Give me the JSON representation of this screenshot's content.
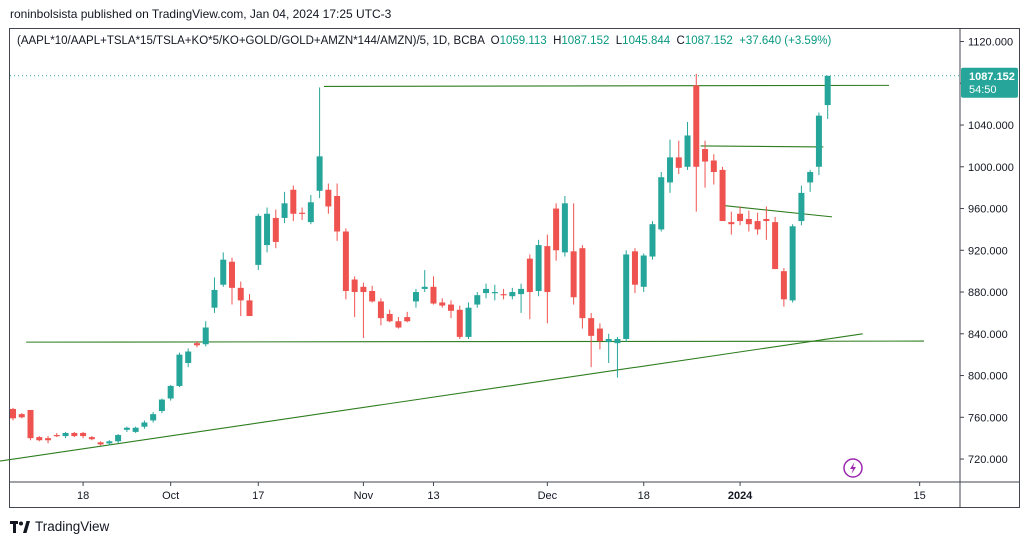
{
  "header": {
    "published_line": "roninbolsista published on TradingView.com, Jan 04, 2024 17:25 UTC-3"
  },
  "legend": {
    "symbol": "(AAPL*10/AAPL+TSLA*15/TSLA+KO*5/KO+GOLD/GOLD+AMZN*144/AMZN)/5, 1D, BCBA",
    "open_label": "O",
    "open": "1059.113",
    "high_label": "H",
    "high": "1087.152",
    "low_label": "L",
    "low": "1045.844",
    "close_label": "C",
    "close": "1087.152",
    "change": "+37.640 (+3.59%)"
  },
  "price_badge": {
    "price": "1087.152",
    "countdown": "54:50"
  },
  "footer": {
    "brand": "TradingView"
  },
  "colors": {
    "up": "#26a69a",
    "down": "#ef5350",
    "drawing": "#2e7d1f",
    "axis_text": "#131722",
    "badge_bg": "#26a69a",
    "frame": "#434651"
  },
  "chart_data": {
    "type": "candlestick",
    "y_axis": {
      "range": [
        698,
        1132
      ],
      "ticks": [
        720,
        760,
        800,
        840,
        880,
        920,
        960,
        1000,
        1040,
        1080,
        1120
      ],
      "tick_labels": [
        "720.000",
        "760.000",
        "800.000",
        "840.000",
        "880.000",
        "920.000",
        "960.000",
        "1000.000",
        "1040.000",
        "1080.000",
        "1120.000"
      ]
    },
    "x_axis": {
      "labels": [
        {
          "date": "2023-09-18",
          "text": "18"
        },
        {
          "date": "2023-10-02",
          "text": "Oct"
        },
        {
          "date": "2023-10-16",
          "text": "17"
        },
        {
          "date": "2023-11-01",
          "text": "Nov"
        },
        {
          "date": "2023-11-13",
          "text": "13"
        },
        {
          "date": "2023-12-01",
          "text": "Dec"
        },
        {
          "date": "2023-12-18",
          "text": "18"
        },
        {
          "date": "2024-01-02",
          "text": "2024"
        },
        {
          "date": "2024-01-15",
          "text": "15"
        }
      ]
    },
    "candles": [
      {
        "date": "2023-09-06",
        "o": 768,
        "h": 769,
        "l": 757,
        "c": 759
      },
      {
        "date": "2023-09-07",
        "o": 763,
        "h": 764,
        "l": 759,
        "c": 760
      },
      {
        "date": "2023-09-08",
        "o": 767,
        "h": 767,
        "l": 738,
        "c": 740
      },
      {
        "date": "2023-09-11",
        "o": 741,
        "h": 742,
        "l": 737,
        "c": 738
      },
      {
        "date": "2023-09-12",
        "o": 740,
        "h": 742,
        "l": 735,
        "c": 738
      },
      {
        "date": "2023-09-13",
        "o": 743,
        "h": 745,
        "l": 741,
        "c": 742
      },
      {
        "date": "2023-09-14",
        "o": 742,
        "h": 746,
        "l": 740,
        "c": 745
      },
      {
        "date": "2023-09-15",
        "o": 745,
        "h": 746,
        "l": 741,
        "c": 742
      },
      {
        "date": "2023-09-18",
        "o": 745,
        "h": 746,
        "l": 740,
        "c": 742
      },
      {
        "date": "2023-09-19",
        "o": 741,
        "h": 742,
        "l": 738,
        "c": 739
      },
      {
        "date": "2023-09-20",
        "o": 736,
        "h": 737,
        "l": 733,
        "c": 734
      },
      {
        "date": "2023-09-21",
        "o": 735,
        "h": 738,
        "l": 733,
        "c": 737
      },
      {
        "date": "2023-09-22",
        "o": 737,
        "h": 744,
        "l": 735,
        "c": 743
      },
      {
        "date": "2023-09-25",
        "o": 748,
        "h": 751,
        "l": 746,
        "c": 750
      },
      {
        "date": "2023-09-26",
        "o": 746,
        "h": 751,
        "l": 745,
        "c": 750
      },
      {
        "date": "2023-09-27",
        "o": 751,
        "h": 757,
        "l": 749,
        "c": 755
      },
      {
        "date": "2023-09-28",
        "o": 757,
        "h": 765,
        "l": 755,
        "c": 763
      },
      {
        "date": "2023-09-29",
        "o": 766,
        "h": 778,
        "l": 764,
        "c": 777
      },
      {
        "date": "2023-10-02",
        "o": 778,
        "h": 791,
        "l": 776,
        "c": 790
      },
      {
        "date": "2023-10-03",
        "o": 790,
        "h": 822,
        "l": 789,
        "c": 820
      },
      {
        "date": "2023-10-04",
        "o": 812,
        "h": 826,
        "l": 808,
        "c": 823
      },
      {
        "date": "2023-10-05",
        "o": 831,
        "h": 833,
        "l": 827,
        "c": 829
      },
      {
        "date": "2023-10-06",
        "o": 830,
        "h": 852,
        "l": 828,
        "c": 846
      },
      {
        "date": "2023-10-09",
        "o": 865,
        "h": 894,
        "l": 860,
        "c": 882
      },
      {
        "date": "2023-10-10",
        "o": 887,
        "h": 918,
        "l": 885,
        "c": 911
      },
      {
        "date": "2023-10-11",
        "o": 909,
        "h": 913,
        "l": 868,
        "c": 884
      },
      {
        "date": "2023-10-12",
        "o": 884,
        "h": 890,
        "l": 857,
        "c": 872
      },
      {
        "date": "2023-10-13",
        "o": 872,
        "h": 878,
        "l": 857,
        "c": 857
      },
      {
        "date": "2023-10-16",
        "o": 906,
        "h": 955,
        "l": 901,
        "c": 953
      },
      {
        "date": "2023-10-17",
        "o": 925,
        "h": 961,
        "l": 918,
        "c": 955
      },
      {
        "date": "2023-10-18",
        "o": 951,
        "h": 959,
        "l": 922,
        "c": 928
      },
      {
        "date": "2023-10-19",
        "o": 951,
        "h": 976,
        "l": 946,
        "c": 965
      },
      {
        "date": "2023-10-20",
        "o": 978,
        "h": 982,
        "l": 948,
        "c": 955
      },
      {
        "date": "2023-10-23",
        "o": 956,
        "h": 961,
        "l": 949,
        "c": 955
      },
      {
        "date": "2023-10-24",
        "o": 947,
        "h": 973,
        "l": 945,
        "c": 966
      },
      {
        "date": "2023-10-25",
        "o": 977,
        "h": 1076,
        "l": 970,
        "c": 1010
      },
      {
        "date": "2023-10-26",
        "o": 978,
        "h": 984,
        "l": 955,
        "c": 962
      },
      {
        "date": "2023-10-27",
        "o": 972,
        "h": 984,
        "l": 929,
        "c": 938
      },
      {
        "date": "2023-10-30",
        "o": 938,
        "h": 941,
        "l": 873,
        "c": 881
      },
      {
        "date": "2023-10-31",
        "o": 892,
        "h": 895,
        "l": 856,
        "c": 880
      },
      {
        "date": "2023-11-01",
        "o": 885,
        "h": 889,
        "l": 836,
        "c": 880
      },
      {
        "date": "2023-11-02",
        "o": 881,
        "h": 886,
        "l": 870,
        "c": 871
      },
      {
        "date": "2023-11-03",
        "o": 871,
        "h": 874,
        "l": 848,
        "c": 855
      },
      {
        "date": "2023-11-06",
        "o": 859,
        "h": 863,
        "l": 851,
        "c": 852
      },
      {
        "date": "2023-11-07",
        "o": 852,
        "h": 856,
        "l": 845,
        "c": 846
      },
      {
        "date": "2023-11-08",
        "o": 856,
        "h": 861,
        "l": 851,
        "c": 852
      },
      {
        "date": "2023-11-09",
        "o": 871,
        "h": 883,
        "l": 865,
        "c": 880
      },
      {
        "date": "2023-11-10",
        "o": 883,
        "h": 901,
        "l": 880,
        "c": 885
      },
      {
        "date": "2023-11-13",
        "o": 885,
        "h": 895,
        "l": 868,
        "c": 869
      },
      {
        "date": "2023-11-14",
        "o": 870,
        "h": 874,
        "l": 865,
        "c": 867
      },
      {
        "date": "2023-11-15",
        "o": 868,
        "h": 872,
        "l": 855,
        "c": 862
      },
      {
        "date": "2023-11-16",
        "o": 863,
        "h": 867,
        "l": 835,
        "c": 837
      },
      {
        "date": "2023-11-17",
        "o": 837,
        "h": 870,
        "l": 835,
        "c": 865
      },
      {
        "date": "2023-11-20",
        "o": 868,
        "h": 880,
        "l": 865,
        "c": 877
      },
      {
        "date": "2023-11-21",
        "o": 879,
        "h": 888,
        "l": 874,
        "c": 883
      },
      {
        "date": "2023-11-22",
        "o": 880,
        "h": 887,
        "l": 872,
        "c": 880
      },
      {
        "date": "2023-11-24",
        "o": 878,
        "h": 883,
        "l": 873,
        "c": 877
      },
      {
        "date": "2023-11-27",
        "o": 876,
        "h": 884,
        "l": 873,
        "c": 880
      },
      {
        "date": "2023-11-28",
        "o": 878,
        "h": 888,
        "l": 860,
        "c": 883
      },
      {
        "date": "2023-11-29",
        "o": 912,
        "h": 916,
        "l": 854,
        "c": 880
      },
      {
        "date": "2023-11-30",
        "o": 881,
        "h": 930,
        "l": 876,
        "c": 925
      },
      {
        "date": "2023-12-01",
        "o": 924,
        "h": 935,
        "l": 850,
        "c": 880
      },
      {
        "date": "2023-12-04",
        "o": 960,
        "h": 965,
        "l": 910,
        "c": 920
      },
      {
        "date": "2023-12-05",
        "o": 918,
        "h": 972,
        "l": 914,
        "c": 965
      },
      {
        "date": "2023-12-06",
        "o": 919,
        "h": 965,
        "l": 868,
        "c": 875
      },
      {
        "date": "2023-12-07",
        "o": 922,
        "h": 925,
        "l": 845,
        "c": 855
      },
      {
        "date": "2023-12-08",
        "o": 855,
        "h": 860,
        "l": 808,
        "c": 838
      },
      {
        "date": "2023-12-11",
        "o": 845,
        "h": 850,
        "l": 825,
        "c": 833
      },
      {
        "date": "2023-12-12",
        "o": 832,
        "h": 840,
        "l": 812,
        "c": 835
      },
      {
        "date": "2023-12-13",
        "o": 831,
        "h": 837,
        "l": 798,
        "c": 835
      },
      {
        "date": "2023-12-14",
        "o": 835,
        "h": 920,
        "l": 832,
        "c": 916
      },
      {
        "date": "2023-12-15",
        "o": 919,
        "h": 922,
        "l": 879,
        "c": 887
      },
      {
        "date": "2023-12-18",
        "o": 885,
        "h": 917,
        "l": 880,
        "c": 915
      },
      {
        "date": "2023-12-19",
        "o": 914,
        "h": 948,
        "l": 911,
        "c": 945
      },
      {
        "date": "2023-12-20",
        "o": 940,
        "h": 995,
        "l": 938,
        "c": 990
      },
      {
        "date": "2023-12-21",
        "o": 985,
        "h": 1026,
        "l": 975,
        "c": 1009
      },
      {
        "date": "2023-12-22",
        "o": 1009,
        "h": 1025,
        "l": 993,
        "c": 999
      },
      {
        "date": "2023-12-26",
        "o": 1000,
        "h": 1043,
        "l": 997,
        "c": 1030
      },
      {
        "date": "2023-12-27",
        "o": 1078,
        "h": 1089,
        "l": 957,
        "c": 1000
      },
      {
        "date": "2023-12-28",
        "o": 1017,
        "h": 1025,
        "l": 980,
        "c": 1005
      },
      {
        "date": "2023-12-29",
        "o": 1006,
        "h": 1012,
        "l": 983,
        "c": 995
      },
      {
        "date": "2023-12-31",
        "o": 997,
        "h": 1000,
        "l": 950,
        "c": 948
      },
      {
        "date": "2024-01-01",
        "o": 947,
        "h": 957,
        "l": 935,
        "c": 945
      },
      {
        "date": "2024-01-02",
        "o": 955,
        "h": 962,
        "l": 944,
        "c": 948
      },
      {
        "date": "2024-01-03",
        "o": 950,
        "h": 958,
        "l": 938,
        "c": 945
      },
      {
        "date": "2024-01-03b",
        "o": 948,
        "h": 956,
        "l": 935,
        "c": 940
      },
      {
        "date": "2024-01-04a",
        "o": 950,
        "h": 962,
        "l": 930,
        "c": 948
      },
      {
        "date": "2024-01-04b",
        "o": 947,
        "h": 952,
        "l": 902,
        "c": 902
      },
      {
        "date": "2024-01-05",
        "o": 900,
        "h": 903,
        "l": 866,
        "c": 873
      },
      {
        "date": "2024-01-08",
        "o": 872,
        "h": 945,
        "l": 870,
        "c": 943
      },
      {
        "date": "2024-01-09",
        "o": 948,
        "h": 982,
        "l": 944,
        "c": 975
      },
      {
        "date": "2024-01-10",
        "o": 985,
        "h": 997,
        "l": 976,
        "c": 995
      },
      {
        "date": "2024-01-11",
        "o": 1000,
        "h": 1052,
        "l": 992,
        "c": 1049
      },
      {
        "date": "2024-01-12",
        "o": 1059.113,
        "h": 1087.152,
        "l": 1045.844,
        "c": 1087.152
      }
    ],
    "drawings": [
      {
        "kind": "trendline",
        "from": [
          -1.5,
          718
        ],
        "to": [
          97,
          840
        ]
      },
      {
        "kind": "horizontal",
        "from": [
          1.5,
          832
        ],
        "to": [
          104,
          833
        ]
      },
      {
        "kind": "resistance",
        "from": [
          35.5,
          1077
        ],
        "to": [
          100,
          1078
        ]
      },
      {
        "kind": "breakout",
        "from": [
          78.5,
          1020
        ],
        "to": [
          92.5,
          1019
        ]
      },
      {
        "kind": "trendline",
        "from": [
          81,
          963
        ],
        "to": [
          93.5,
          952
        ]
      }
    ],
    "grid": false
  }
}
